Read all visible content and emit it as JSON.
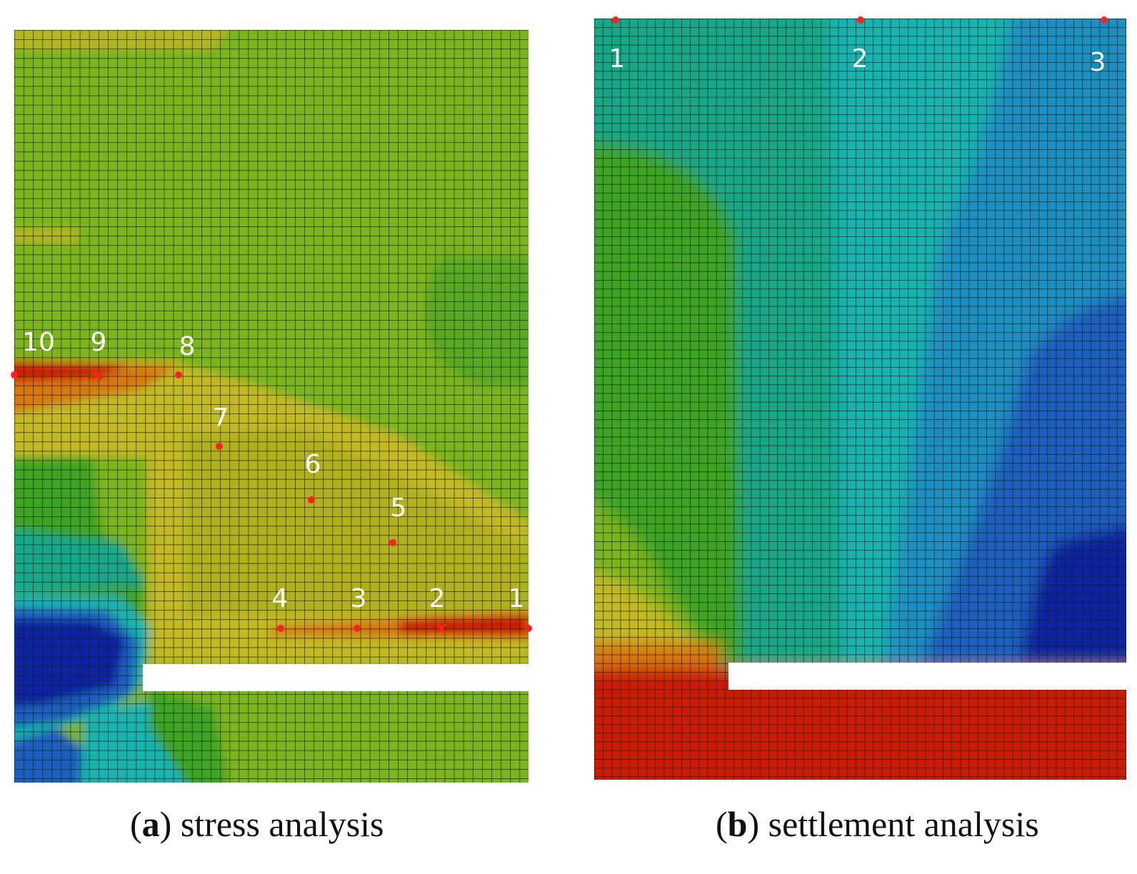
{
  "panels": [
    {
      "letter": "a",
      "caption": "stress analysis",
      "points": [
        {
          "label": "1",
          "marker": "dot"
        },
        {
          "label": "2",
          "marker": "cross"
        },
        {
          "label": "3",
          "marker": "dot"
        },
        {
          "label": "4",
          "marker": "dot"
        },
        {
          "label": "5",
          "marker": "dot"
        },
        {
          "label": "6",
          "marker": "dot"
        },
        {
          "label": "7",
          "marker": "dot"
        },
        {
          "label": "8",
          "marker": "dot"
        },
        {
          "label": "9",
          "marker": "cross"
        },
        {
          "label": "10",
          "marker": "dot"
        }
      ]
    },
    {
      "letter": "b",
      "caption": "settlement analysis",
      "points": [
        {
          "label": "1",
          "marker": "dot"
        },
        {
          "label": "2",
          "marker": "dot"
        },
        {
          "label": "3",
          "marker": "dot"
        }
      ]
    }
  ],
  "colors": {
    "red": "#cc1a00",
    "orange": "#d8780e",
    "yellow": "#c8b81e",
    "yellow_green": "#a9b81e",
    "green": "#7cb41a",
    "deep_green": "#3da524",
    "teal": "#12a888",
    "cyan": "#15b3b0",
    "light_blue": "#1c8fc2",
    "blue": "#1f5fbf",
    "deep_blue": "#1a3ab2",
    "navy": "#0f22a0",
    "marker": "#ff2020",
    "mesh": "#0b1a08"
  }
}
